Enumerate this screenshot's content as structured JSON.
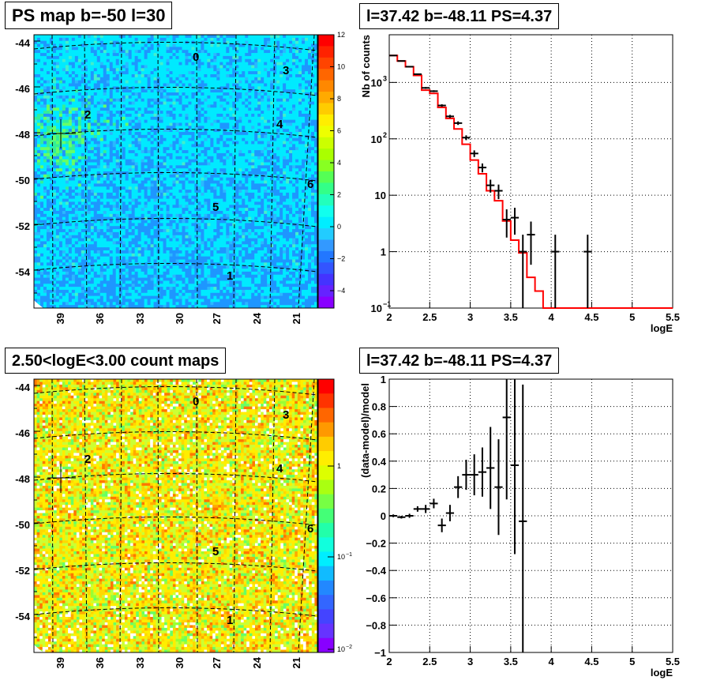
{
  "panels": {
    "ps_map": {
      "title": "PS map b=-50 l=30",
      "colorbar_ticks": [
        "12",
        "10",
        "8",
        "6",
        "4",
        "2",
        "0",
        "−2",
        "−4"
      ],
      "source_labels": [
        "0",
        "1",
        "2",
        "3",
        "4",
        "5",
        "6"
      ]
    },
    "spectrum": {
      "title": "l=37.42 b=-48.11 PS=4.37"
    },
    "count_map": {
      "title": "2.50<logE<3.00 count maps",
      "colorbar_ticks": [
        "1",
        "10",
        "10"
      ],
      "colorbar_exponents": [
        "",
        "−1",
        "−2"
      ],
      "source_labels": [
        "0",
        "1",
        "2",
        "3",
        "4",
        "5",
        "6"
      ]
    },
    "residual": {
      "title": "l=37.42 b=-48.11 PS=4.37"
    }
  },
  "map_axes": {
    "y_ticks": [
      "-44",
      "-46",
      "-48",
      "-50",
      "-52",
      "-54"
    ],
    "x_ticks": [
      "39",
      "36",
      "33",
      "30",
      "27",
      "24",
      "21"
    ]
  },
  "chart_data": [
    {
      "type": "heatmap",
      "title": "PS map b=-50 l=30",
      "xlabel": "",
      "ylabel": "",
      "x_ticks": [
        39,
        36,
        33,
        30,
        27,
        24,
        21
      ],
      "y_ticks": [
        -44,
        -46,
        -48,
        -50,
        -52,
        -54
      ],
      "z_range": [
        -5,
        12
      ],
      "colorbar_ticks": [
        12,
        10,
        8,
        6,
        4,
        2,
        0,
        -2,
        -4
      ],
      "source_labels": [
        "0",
        "1",
        "2",
        "3",
        "4",
        "5",
        "6"
      ],
      "marker": "l=37.42 b=-48.11"
    },
    {
      "type": "line",
      "title": "l=37.42 b=-48.11 PS=4.37",
      "xlabel": "logE",
      "ylabel": "Nb of counts",
      "x_range": [
        2,
        5.5
      ],
      "y_range": [
        0.1,
        7000
      ],
      "y_scale": "log",
      "x_ticks": [
        2,
        2.5,
        3,
        3.5,
        4,
        4.5,
        5,
        5.5
      ],
      "y_ticks": [
        0.1,
        1,
        10,
        100,
        1000
      ],
      "grid": true,
      "data": {
        "x": [
          2.05,
          2.15,
          2.25,
          2.35,
          2.45,
          2.55,
          2.65,
          2.75,
          2.85,
          2.95,
          3.05,
          3.15,
          3.25,
          3.35,
          3.45,
          3.55,
          3.65,
          3.75,
          4.05,
          4.45
        ],
        "y": [
          3000,
          2400,
          1900,
          1400,
          800,
          700,
          390,
          250,
          190,
          105,
          55,
          31,
          15,
          12,
          3.7,
          4,
          1,
          2,
          1,
          1
        ]
      },
      "model": {
        "edges": [
          2.0,
          2.1,
          2.2,
          2.3,
          2.4,
          2.5,
          2.6,
          2.7,
          2.8,
          2.9,
          3.0,
          3.1,
          3.2,
          3.3,
          3.4,
          3.5,
          3.6,
          3.7,
          3.8,
          3.9,
          5.5
        ],
        "values": [
          3000,
          2400,
          1900,
          1330,
          730,
          640,
          360,
          230,
          150,
          80,
          42,
          24,
          12,
          8,
          3.5,
          1.6,
          0.95,
          0.35,
          0.2,
          0.1
        ]
      },
      "colors": {
        "model": "#ff0000",
        "data": "#000000"
      }
    },
    {
      "type": "heatmap",
      "title": "2.50<logE<3.00 count maps",
      "xlabel": "",
      "ylabel": "",
      "x_ticks": [
        39,
        36,
        33,
        30,
        27,
        24,
        21
      ],
      "y_ticks": [
        -44,
        -46,
        -48,
        -50,
        -52,
        -54
      ],
      "z_scale": "log",
      "colorbar_ticks": [
        "1",
        "10^-1",
        "10^-2"
      ],
      "source_labels": [
        "0",
        "1",
        "2",
        "3",
        "4",
        "5",
        "6"
      ],
      "marker": "l=37.42 b=-48.11"
    },
    {
      "type": "scatter",
      "title": "l=37.42 b=-48.11 PS=4.37",
      "xlabel": "logE",
      "ylabel": "(data-model)/model",
      "x_range": [
        2,
        5.5
      ],
      "y_range": [
        -1,
        1
      ],
      "x_ticks": [
        2,
        2.5,
        3,
        3.5,
        4,
        4.5,
        5,
        5.5
      ],
      "y_ticks": [
        -1,
        -0.8,
        -0.6,
        -0.4,
        -0.2,
        0,
        0.2,
        0.4,
        0.6,
        0.8,
        1
      ],
      "grid": true,
      "data": {
        "x": [
          2.05,
          2.15,
          2.25,
          2.35,
          2.45,
          2.55,
          2.65,
          2.75,
          2.85,
          2.95,
          3.05,
          3.15,
          3.25,
          3.35,
          3.45,
          3.55,
          3.65
        ],
        "y": [
          0.0,
          -0.01,
          0.0,
          0.05,
          0.05,
          0.09,
          -0.07,
          0.02,
          0.21,
          0.3,
          0.3,
          0.32,
          0.35,
          0.21,
          0.72,
          0.37,
          -0.04
        ],
        "err": [
          0.01,
          0.01,
          0.015,
          0.02,
          0.03,
          0.035,
          0.05,
          0.06,
          0.08,
          0.11,
          0.15,
          0.18,
          0.3,
          0.35,
          0.6,
          0.65,
          1.0
        ]
      }
    }
  ]
}
